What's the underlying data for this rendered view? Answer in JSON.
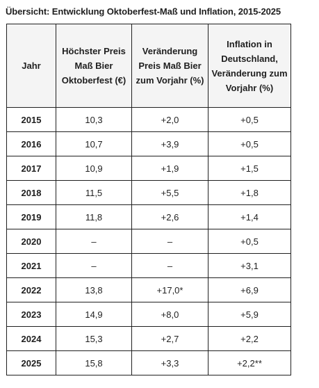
{
  "title": "Übersicht: Entwicklung Oktoberfest-Maß und Inflation, 2015-2025",
  "table": {
    "headers": [
      "Jahr",
      "Höchster Preis Maß Bier Oktoberfest (€)",
      "Veränderung Preis Maß Bier zum Vorjahr (%)",
      "Inflation in Deutschland, Veränderung zum Vorjahr (%)"
    ],
    "rows": [
      [
        "2015",
        "10,3",
        "+2,0",
        "+0,5"
      ],
      [
        "2016",
        "10,7",
        "+3,9",
        "+0,5"
      ],
      [
        "2017",
        "10,9",
        "+1,9",
        "+1,5"
      ],
      [
        "2018",
        "11,5",
        "+5,5",
        "+1,8"
      ],
      [
        "2019",
        "11,8",
        "+2,6",
        "+1,4"
      ],
      [
        "2020",
        "–",
        "–",
        "+0,5"
      ],
      [
        "2021",
        "–",
        "–",
        "+3,1"
      ],
      [
        "2022",
        "13,8",
        "+17,0*",
        "+6,9"
      ],
      [
        "2023",
        "14,9",
        "+8,0",
        "+5,9"
      ],
      [
        "2024",
        "15,3",
        "+2,7",
        "+2,2"
      ],
      [
        "2025",
        "15,8",
        "+3,3",
        "+2,2**"
      ]
    ]
  }
}
